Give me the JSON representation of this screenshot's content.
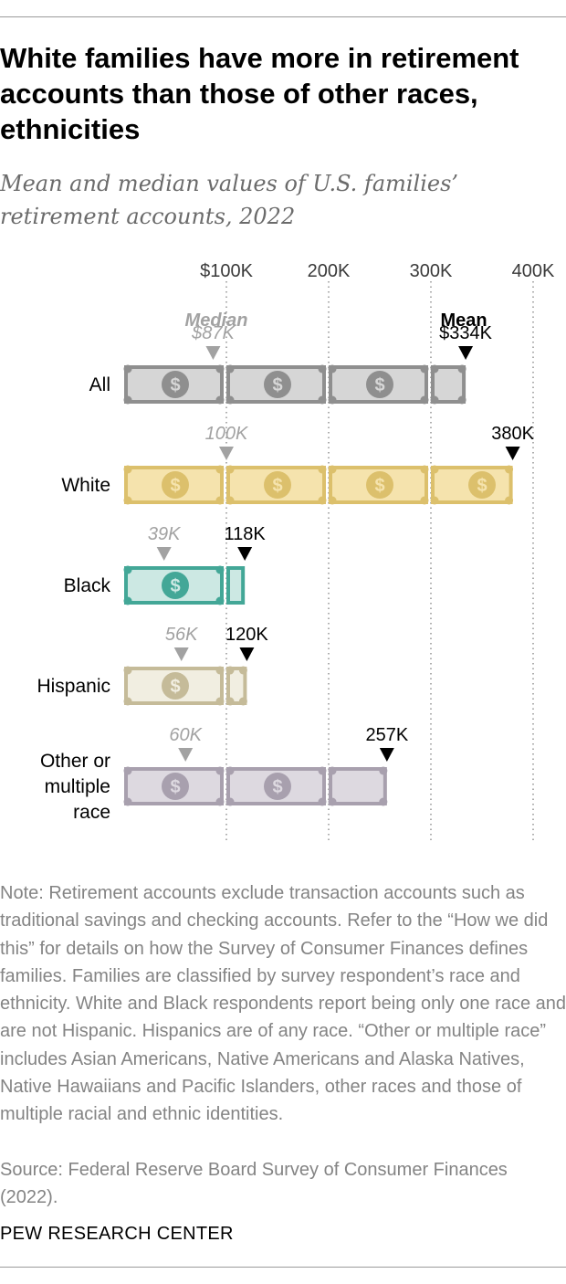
{
  "header": {
    "title": "White families have more in retirement accounts than those of other races, ethnicities",
    "subtitle": "Mean and median values of U.S. families’ retirement accounts, 2022"
  },
  "footer": {
    "note": "Note: Retirement accounts exclude transaction accounts such as traditional savings and checking accounts. Refer to the “How we did this” for details on how the Survey of Consumer Finances defines families. Families are classified by survey respondent’s race and ethnicity. White and Black respondents report being only one race and are not Hispanic. Hispanics are of any race. “Other or multiple race” includes Asian Americans, Native Americans and Alaska Natives, Native Hawaiians and Pacific Islanders, other races and those of multiple racial and ethnic identities.",
    "source": "Source: Federal Reserve Board Survey of Consumer Finances (2022).",
    "logo": "PEW RESEARCH CENTER"
  },
  "chart_data": {
    "type": "bar",
    "xlim": [
      0,
      400000
    ],
    "ticks": [
      {
        "value": 100000,
        "label": "$100K"
      },
      {
        "value": 200000,
        "label": "200K"
      },
      {
        "value": 300000,
        "label": "300K"
      },
      {
        "value": 400000,
        "label": "400K"
      }
    ],
    "grid": "vertical dotted",
    "median_legend": "Median",
    "mean_legend": "Mean",
    "colors": {
      "median_marker": "#a2a2a2",
      "median_label": "#a2a2a2",
      "mean_marker": "#000000",
      "gridline": "#8c8c8c"
    },
    "rows": [
      {
        "category": "All",
        "median": 87000,
        "median_label": "$87K",
        "mean": 334000,
        "mean_label": "$334K",
        "fill": "#d6d6d6",
        "border": "#8f8f8f",
        "coin": "#8f8f8f"
      },
      {
        "category": "White",
        "median": 100000,
        "median_label": "100K",
        "mean": 380000,
        "mean_label": "380K",
        "fill": "#f5e3ad",
        "border": "#dcc06c",
        "coin": "#dcc06c"
      },
      {
        "category": "Black",
        "median": 39000,
        "median_label": "39K",
        "mean": 118000,
        "mean_label": "118K",
        "fill": "#cce8e3",
        "border": "#43a797",
        "coin": "#43a797"
      },
      {
        "category": "Hispanic",
        "median": 56000,
        "median_label": "56K",
        "mean": 120000,
        "mean_label": "120K",
        "fill": "#f1eee1",
        "border": "#c5bb99",
        "coin": "#c5bb99"
      },
      {
        "category": "Other or multiple race",
        "category_lines": [
          "Other or",
          "multiple",
          "race"
        ],
        "median": 60000,
        "median_label": "60K",
        "mean": 257000,
        "mean_label": "257K",
        "fill": "#ddd9e0",
        "border": "#a8a0ae",
        "coin": "#a8a0ae"
      }
    ]
  }
}
